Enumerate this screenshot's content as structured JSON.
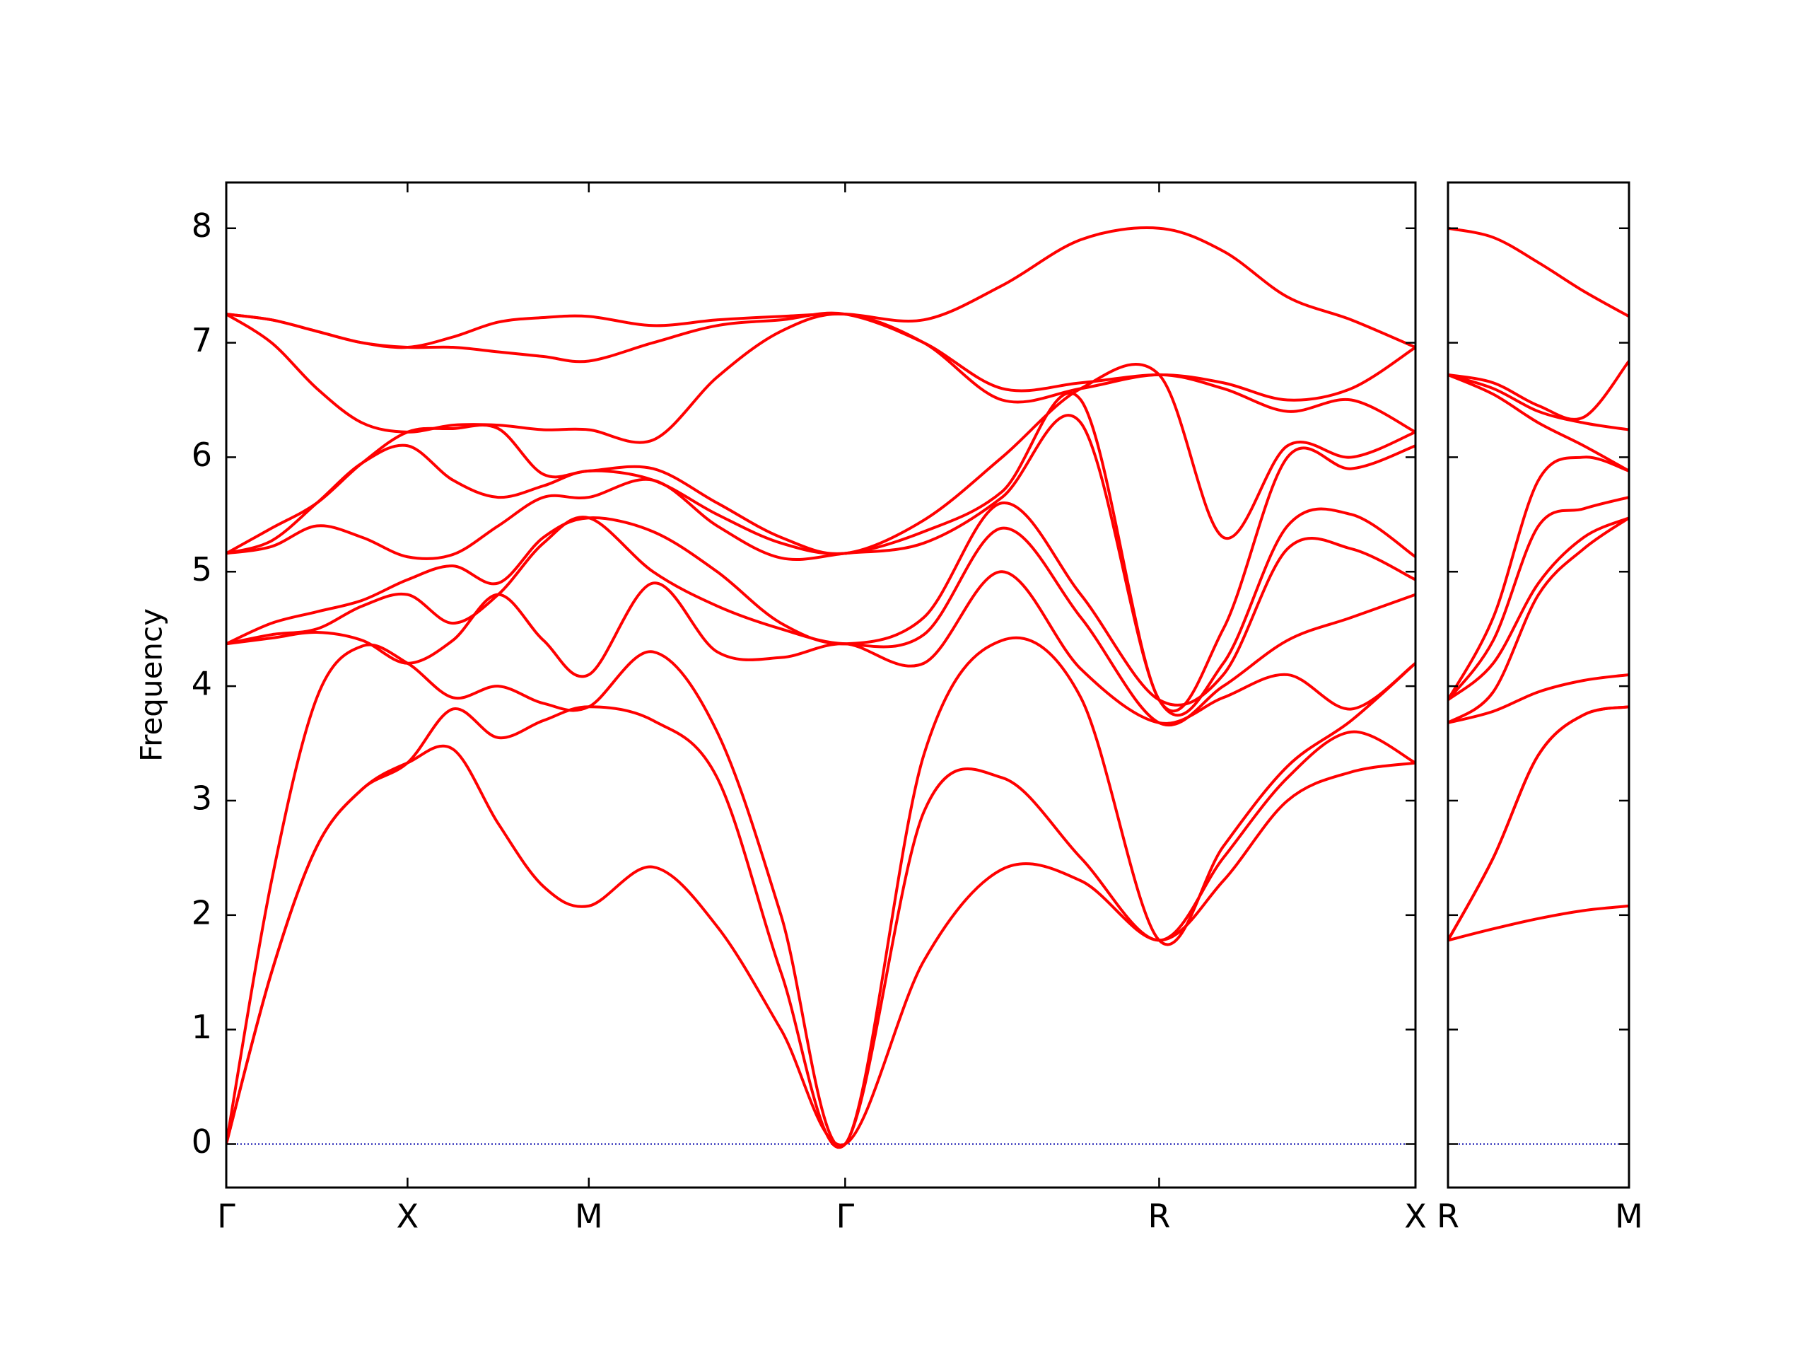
{
  "chart_data": [
    {
      "type": "line",
      "ylabel": "Frequency",
      "color": "#ff0000",
      "x": [
        0,
        0.125,
        0.25,
        0.375,
        0.5,
        0.625,
        0.75,
        0.875,
        1.0,
        1.177,
        1.354,
        1.53,
        1.707,
        1.924,
        2.14,
        2.357,
        2.573,
        2.75,
        2.927,
        3.103,
        3.28
      ],
      "xlim": [
        0,
        3.28
      ],
      "xticks": [
        {
          "value": 0,
          "label": "Γ"
        },
        {
          "value": 0.5,
          "label": "X"
        },
        {
          "value": 1.0,
          "label": "M"
        },
        {
          "value": 1.707,
          "label": "Γ"
        },
        {
          "value": 2.573,
          "label": "R"
        },
        {
          "value": 3.28,
          "label": "X"
        }
      ],
      "ylim": [
        -0.38,
        8.4
      ],
      "yticks": [
        0,
        1,
        2,
        3,
        4,
        5,
        6,
        7,
        8
      ],
      "ytick_labels": true,
      "hline": 0,
      "hline_color": "#0000aa",
      "series": [
        {
          "color": "#ff0000",
          "values": [
            0,
            1.5,
            2.6,
            3.1,
            3.33,
            3.45,
            2.8,
            2.25,
            2.08,
            2.42,
            1.9,
            1.0,
            0,
            1.6,
            2.4,
            2.3,
            1.78,
            2.3,
            3.0,
            3.25,
            3.33
          ]
        },
        {
          "color": "#ff0000",
          "values": [
            0,
            1.5,
            2.6,
            3.1,
            3.33,
            3.8,
            3.55,
            3.7,
            3.82,
            3.7,
            3.2,
            1.5,
            0,
            2.9,
            3.2,
            2.5,
            1.78,
            2.5,
            3.2,
            3.6,
            3.33
          ]
        },
        {
          "color": "#ff0000",
          "values": [
            0,
            2.3,
            3.9,
            4.35,
            4.2,
            3.9,
            4.0,
            3.85,
            3.82,
            4.3,
            3.6,
            2.0,
            0,
            3.4,
            4.4,
            3.9,
            1.78,
            2.6,
            3.3,
            3.7,
            4.2
          ]
        },
        {
          "color": "#ff0000",
          "values": [
            4.37,
            4.42,
            4.47,
            4.4,
            4.2,
            4.4,
            4.8,
            4.4,
            4.1,
            4.9,
            4.3,
            4.25,
            4.37,
            4.2,
            5.0,
            4.15,
            3.68,
            3.9,
            4.1,
            3.8,
            4.2
          ]
        },
        {
          "color": "#ff0000",
          "values": [
            4.37,
            4.45,
            4.5,
            4.7,
            4.8,
            4.55,
            4.8,
            5.25,
            5.47,
            5.0,
            4.7,
            4.5,
            4.37,
            4.45,
            5.38,
            4.6,
            3.68,
            4.0,
            4.4,
            4.6,
            4.8
          ]
        },
        {
          "color": "#ff0000",
          "values": [
            4.37,
            4.55,
            4.65,
            4.75,
            4.93,
            5.05,
            4.9,
            5.3,
            5.47,
            5.35,
            5.0,
            4.55,
            4.37,
            4.6,
            5.6,
            4.8,
            3.88,
            4.1,
            5.2,
            5.2,
            4.93
          ]
        },
        {
          "color": "#ff0000",
          "values": [
            5.16,
            5.22,
            5.4,
            5.3,
            5.13,
            5.15,
            5.4,
            5.65,
            5.65,
            5.8,
            5.4,
            5.12,
            5.16,
            5.25,
            5.65,
            6.3,
            3.88,
            4.2,
            5.4,
            5.5,
            5.13
          ]
        },
        {
          "color": "#ff0000",
          "values": [
            5.16,
            5.27,
            5.6,
            5.95,
            6.1,
            5.8,
            5.65,
            5.75,
            5.88,
            5.8,
            5.5,
            5.25,
            5.16,
            5.35,
            5.7,
            6.5,
            3.88,
            4.5,
            6.0,
            5.9,
            6.1
          ]
        },
        {
          "color": "#ff0000",
          "values": [
            5.16,
            5.38,
            5.6,
            5.95,
            6.22,
            6.25,
            6.25,
            5.85,
            5.88,
            5.9,
            5.6,
            5.3,
            5.16,
            5.45,
            6.0,
            6.6,
            6.72,
            5.3,
            6.1,
            6.0,
            6.22
          ]
        },
        {
          "color": "#ff0000",
          "values": [
            7.25,
            7.0,
            6.6,
            6.3,
            6.22,
            6.28,
            6.28,
            6.24,
            6.24,
            6.15,
            6.7,
            7.1,
            7.25,
            7.0,
            6.5,
            6.6,
            6.72,
            6.6,
            6.4,
            6.5,
            6.22
          ]
        },
        {
          "color": "#ff0000",
          "values": [
            7.25,
            7.2,
            7.1,
            7.0,
            6.96,
            6.96,
            6.92,
            6.88,
            6.84,
            7.0,
            7.15,
            7.2,
            7.25,
            7.0,
            6.6,
            6.65,
            6.72,
            6.65,
            6.5,
            6.6,
            6.96
          ]
        },
        {
          "color": "#ff0000",
          "values": [
            7.25,
            7.2,
            7.1,
            7.0,
            6.96,
            7.05,
            7.18,
            7.22,
            7.23,
            7.15,
            7.2,
            7.23,
            7.25,
            7.2,
            7.5,
            7.9,
            8.0,
            7.8,
            7.4,
            7.2,
            6.96
          ]
        }
      ]
    },
    {
      "type": "line",
      "color": "#ff0000",
      "x": [
        0,
        0.125,
        0.25,
        0.375,
        0.5
      ],
      "xlim": [
        0,
        0.5
      ],
      "xticks": [
        {
          "value": 0,
          "label": "R"
        },
        {
          "value": 0.5,
          "label": "M"
        }
      ],
      "ylim": [
        -0.38,
        8.4
      ],
      "yticks": [
        0,
        1,
        2,
        3,
        4,
        5,
        6,
        7,
        8
      ],
      "ytick_labels": false,
      "hline": 0,
      "hline_color": "#0000aa",
      "series": [
        {
          "color": "#ff0000",
          "values": [
            1.78,
            1.88,
            1.97,
            2.04,
            2.08
          ]
        },
        {
          "color": "#ff0000",
          "values": [
            1.78,
            2.5,
            3.4,
            3.75,
            3.82
          ]
        },
        {
          "color": "#ff0000",
          "values": [
            1.78,
            2.5,
            3.4,
            3.75,
            3.82
          ]
        },
        {
          "color": "#ff0000",
          "values": [
            3.68,
            3.78,
            3.95,
            4.05,
            4.1
          ]
        },
        {
          "color": "#ff0000",
          "values": [
            3.68,
            3.95,
            4.8,
            5.2,
            5.47
          ]
        },
        {
          "color": "#ff0000",
          "values": [
            3.88,
            4.2,
            4.9,
            5.3,
            5.47
          ]
        },
        {
          "color": "#ff0000",
          "values": [
            3.88,
            4.4,
            5.4,
            5.55,
            5.65
          ]
        },
        {
          "color": "#ff0000",
          "values": [
            3.88,
            4.6,
            5.8,
            6.0,
            5.88
          ]
        },
        {
          "color": "#ff0000",
          "values": [
            6.72,
            6.55,
            6.3,
            6.1,
            5.88
          ]
        },
        {
          "color": "#ff0000",
          "values": [
            6.72,
            6.6,
            6.4,
            6.3,
            6.24
          ]
        },
        {
          "color": "#ff0000",
          "values": [
            6.72,
            6.65,
            6.45,
            6.35,
            6.84
          ]
        },
        {
          "color": "#ff0000",
          "values": [
            8.0,
            7.92,
            7.7,
            7.45,
            7.23
          ]
        }
      ]
    }
  ]
}
